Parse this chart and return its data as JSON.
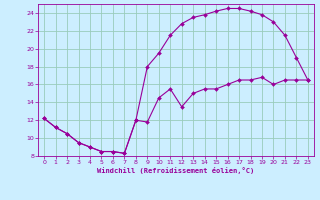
{
  "xlabel": "Windchill (Refroidissement éolien,°C)",
  "bg_color": "#cceeff",
  "grid_color": "#99ccbb",
  "line_color": "#990099",
  "xlim": [
    -0.5,
    23.5
  ],
  "ylim": [
    8,
    25
  ],
  "xticks": [
    0,
    1,
    2,
    3,
    4,
    5,
    6,
    7,
    8,
    9,
    10,
    11,
    12,
    13,
    14,
    15,
    16,
    17,
    18,
    19,
    20,
    21,
    22,
    23
  ],
  "yticks": [
    8,
    10,
    12,
    14,
    16,
    18,
    20,
    22,
    24
  ],
  "line1_x": [
    0,
    1,
    2,
    3,
    4,
    5,
    6,
    7,
    8,
    9,
    10,
    11,
    12,
    13,
    14,
    15,
    16,
    17,
    18,
    19,
    20,
    21,
    22,
    23
  ],
  "line1_y": [
    12.2,
    11.2,
    10.5,
    9.5,
    9.0,
    8.5,
    8.5,
    8.3,
    12.0,
    11.8,
    14.5,
    15.5,
    13.5,
    15.0,
    15.5,
    15.5,
    16.0,
    16.5,
    16.5,
    16.8,
    16.0,
    16.5,
    16.5,
    16.5
  ],
  "line2_x": [
    0,
    1,
    2,
    3,
    4,
    5,
    6,
    7,
    8,
    9,
    10,
    11,
    12,
    13,
    14,
    15,
    16,
    17,
    18,
    19,
    20,
    21,
    22,
    23
  ],
  "line2_y": [
    12.2,
    11.2,
    10.5,
    9.5,
    9.0,
    8.5,
    8.5,
    8.3,
    12.0,
    18.0,
    19.5,
    21.5,
    22.8,
    23.5,
    23.8,
    24.2,
    24.5,
    24.5,
    24.2,
    23.8,
    23.0,
    21.5,
    19.0,
    16.5
  ]
}
